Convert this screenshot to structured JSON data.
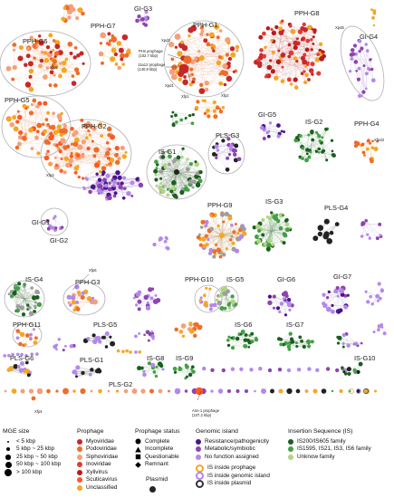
{
  "group_labels": [
    "PPH-G7",
    "GI-G3",
    "PPH-G1",
    "PPH-G8",
    "PPH-G6",
    "GI-G4",
    "PPH-G5",
    "PPH-G2",
    "GI-G5",
    "IS-G2",
    "PPH-G4",
    "IS-G1",
    "PLS-G3",
    "GI-G1",
    "GI-G2",
    "PPH-G9",
    "IS-G3",
    "PLS-G4",
    "IS-G4",
    "PPH-G3",
    "PPH-G10",
    "IS-G5",
    "GI-G6",
    "GI-G7",
    "PPH-G11",
    "PLS-G5",
    "IS-G6",
    "IS-G7",
    "PLS-G6",
    "PLS-G1",
    "IS-G8",
    "IS-G9",
    "IS-G10",
    "PLS-G2"
  ],
  "annotations": [
    "PHs prophage",
    "(102.7 kbp)",
    "J1a12 prophage",
    "(140.8 kbp)",
    "Xpd3",
    "Xpd1",
    "Xfp1",
    "Xfp2",
    "Xfp5",
    "Xfp3",
    "Xpd5",
    "Xfpd3",
    "Xfp6",
    "Xfp4",
    "Ann-1 prophage",
    "(107.2 kbp)"
  ],
  "legend": {
    "size": {
      "title": "MGE size",
      "items": [
        "< 5 kbp",
        "5 kbp ~ 25 kbp",
        "25 kbp ~ 50 kbp",
        "50 kbp ~ 100 kbp",
        "> 100 kbp"
      ]
    },
    "prophage": {
      "title": "Prophage",
      "items": [
        {
          "label": "Myoviridae",
          "color": "#c62828"
        },
        {
          "label": "Podoviridae",
          "color": "#ef6c2a"
        },
        {
          "label": "Siphoviridae",
          "color": "#f4a07a"
        },
        {
          "label": "Inoviridae",
          "color": "#e53935"
        },
        {
          "label": "Xylivirus",
          "color": "#b71c1c"
        },
        {
          "label": "Scuticavirus",
          "color": "#ff5722"
        },
        {
          "label": "Unclassified",
          "color": "#f5a623"
        }
      ]
    },
    "status": {
      "title": "Prophage status",
      "items": [
        {
          "label": "Complete",
          "shape": "circle"
        },
        {
          "label": "Incomplete",
          "shape": "triangle"
        },
        {
          "label": "Questionable",
          "shape": "square"
        },
        {
          "label": "Remnant",
          "shape": "diamond"
        }
      ]
    },
    "plasmid": {
      "title": "Plasmid"
    },
    "genomic_island": {
      "title": "Genomic island",
      "items": [
        {
          "label": "Resistance/pathogenicity",
          "color": "#4a148c"
        },
        {
          "label": "Metabolic/symbiotic",
          "color": "#8e44ad"
        },
        {
          "label": "No function assigned",
          "color": "#b388eb"
        }
      ]
    },
    "is": {
      "title": "Insertion Sequence (IS)",
      "items": [
        {
          "label": "IS200/IS605 family",
          "color": "#1b5e20"
        },
        {
          "label": "IS1595, IS21, IS3, IS6 family",
          "color": "#43a047"
        },
        {
          "label": "Unknow family",
          "color": "#aed581"
        }
      ]
    },
    "rings": [
      {
        "label": "IS inside prophage",
        "color": "#f5a623"
      },
      {
        "label": "IS inside genomic island",
        "color": "#b388eb"
      },
      {
        "label": "IS inside plasmid",
        "color": "#333333"
      }
    ]
  }
}
